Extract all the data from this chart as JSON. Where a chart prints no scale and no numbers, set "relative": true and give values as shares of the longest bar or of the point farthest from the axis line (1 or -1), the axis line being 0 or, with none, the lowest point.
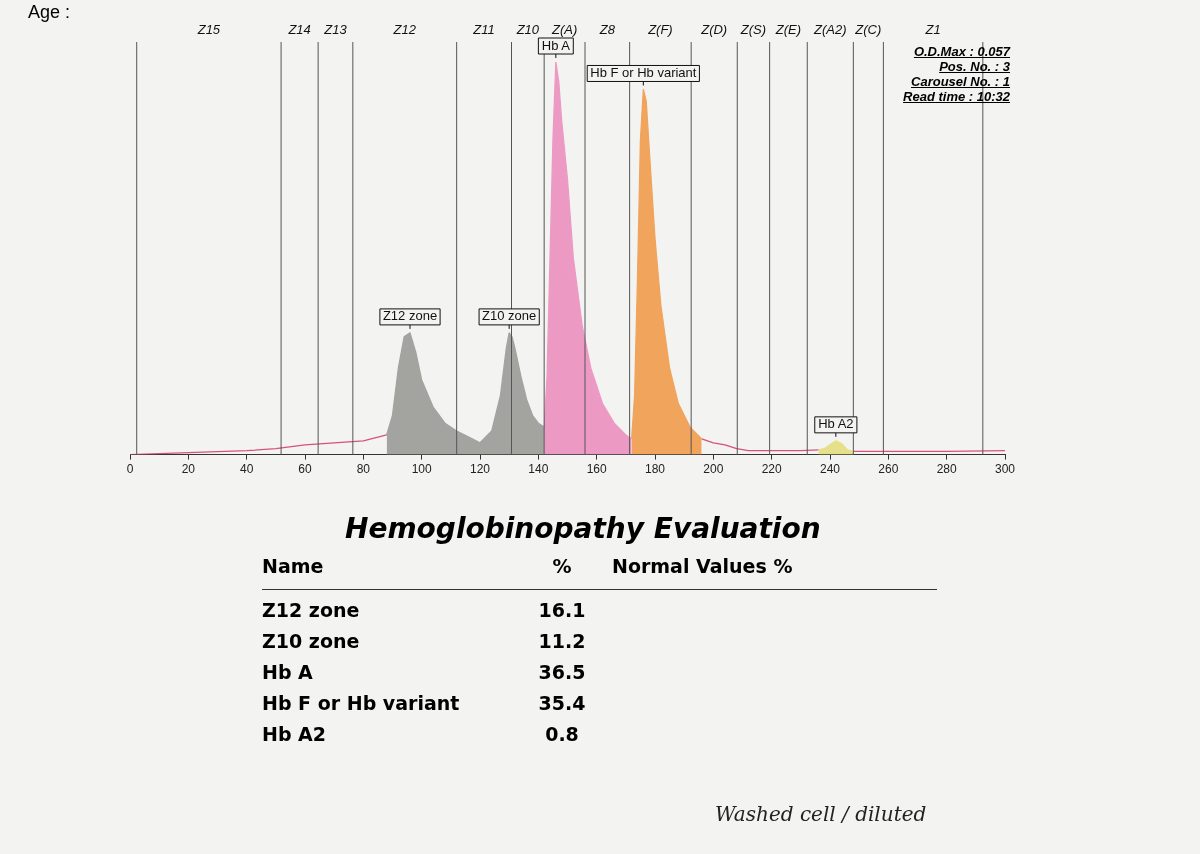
{
  "chart_data": [
    {
      "type": "area",
      "relative": true,
      "xlim": [
        0,
        300
      ],
      "xticks": [
        0,
        20,
        40,
        60,
        80,
        100,
        120,
        140,
        160,
        180,
        200,
        220,
        240,
        260,
        280,
        300
      ],
      "grid": false,
      "legend": false,
      "marker": "none",
      "series": [
        {
          "type": "line",
          "color": "#d9507f",
          "x": [
            0,
            20,
            40,
            50,
            60,
            70,
            80,
            88
          ],
          "values": [
            0,
            0.005,
            0.01,
            0.015,
            0.025,
            0.03,
            0.035,
            0.05
          ]
        },
        {
          "type": "area",
          "color": "#a3a3a0",
          "x": [
            88,
            90,
            92,
            94,
            96,
            98,
            100,
            104,
            108,
            112,
            116,
            120,
            124,
            127,
            129,
            130,
            131,
            132,
            134,
            136,
            138,
            140,
            142
          ],
          "values": [
            0.05,
            0.1,
            0.22,
            0.3,
            0.31,
            0.26,
            0.19,
            0.12,
            0.08,
            0.06,
            0.045,
            0.03,
            0.06,
            0.15,
            0.27,
            0.31,
            0.3,
            0.27,
            0.2,
            0.14,
            0.1,
            0.08,
            0.07
          ]
        },
        {
          "type": "area",
          "color": "#ec9ac4",
          "x": [
            142,
            143,
            144,
            145,
            146,
            147,
            148,
            150,
            152,
            155,
            158,
            162,
            166,
            170,
            172
          ],
          "values": [
            0.07,
            0.2,
            0.5,
            0.8,
            1,
            0.95,
            0.85,
            0.7,
            0.5,
            0.33,
            0.22,
            0.13,
            0.08,
            0.05,
            0.04
          ]
        },
        {
          "type": "area",
          "color": "#f0a45c",
          "x": [
            172,
            173,
            174,
            175,
            176,
            177,
            178,
            180,
            182,
            185,
            188,
            192,
            196
          ],
          "values": [
            0.04,
            0.15,
            0.45,
            0.8,
            0.93,
            0.9,
            0.78,
            0.55,
            0.38,
            0.22,
            0.13,
            0.07,
            0.04
          ]
        },
        {
          "type": "line",
          "color": "#d9507f",
          "x": [
            196,
            200,
            204,
            208,
            212,
            220,
            230,
            236
          ],
          "values": [
            0.04,
            0.03,
            0.025,
            0.015,
            0.01,
            0.01,
            0.01,
            0.012
          ]
        },
        {
          "type": "area",
          "color": "#e6e08a",
          "x": [
            236,
            238,
            240,
            242,
            244,
            246,
            248
          ],
          "values": [
            0.012,
            0.015,
            0.025,
            0.035,
            0.028,
            0.012,
            0.008
          ]
        },
        {
          "type": "line",
          "color": "#d9507f",
          "x": [
            248,
            260,
            280,
            300
          ],
          "values": [
            0.008,
            0.008,
            0.008,
            0.01
          ]
        }
      ],
      "ref_lines": [
        {
          "axis": "x",
          "value": 2.3
        },
        {
          "axis": "x",
          "value": 51.8
        },
        {
          "axis": "x",
          "value": 64.5
        },
        {
          "axis": "x",
          "value": 76.4
        },
        {
          "axis": "x",
          "value": 112
        },
        {
          "axis": "x",
          "value": 130.8
        },
        {
          "axis": "x",
          "value": 142
        },
        {
          "axis": "x",
          "value": 156
        },
        {
          "axis": "x",
          "value": 171.3
        },
        {
          "axis": "x",
          "value": 192.4
        },
        {
          "axis": "x",
          "value": 208.2
        },
        {
          "axis": "x",
          "value": 219.3
        },
        {
          "axis": "x",
          "value": 232.2
        },
        {
          "axis": "x",
          "value": 248
        },
        {
          "axis": "x",
          "value": 258.3
        },
        {
          "axis": "x",
          "value": 292.4
        }
      ],
      "annotations": [
        "Age :",
        "O.D.Max : 0.057",
        "Pos. No. : 3",
        "Carousel No. : 1",
        "Read time : 10:32",
        "Z15",
        "Z14",
        "Z13",
        "Z12",
        "Z11",
        "Z10",
        "Z(A)",
        "Z8",
        "Z(F)",
        "Z(D)",
        "Z(S)",
        "Z(E)",
        "Z(A2)",
        "Z(C)",
        "Z1",
        {
          "text": "Z12 zone",
          "x": 96,
          "y": 0.31
        },
        {
          "text": "Z10 zone",
          "x": 130,
          "y": 0.31
        },
        {
          "text": "Hb A",
          "x": 146,
          "y": 1
        },
        {
          "text": "Hb F or Hb variant",
          "x": 176,
          "y": 0.93
        },
        {
          "text": "Hb A2",
          "x": 242,
          "y": 0.035
        }
      ]
    },
    {
      "type": "other",
      "title": "Hemoglobinopathy Evaluation",
      "annotations": [
        "Name",
        "%",
        "Normal Values %",
        "Z12 zone",
        "16.1",
        "Z10 zone",
        "11.2",
        "Hb A",
        "36.5",
        "Hb F or Hb variant",
        "35.4",
        "Hb A2",
        "0.8",
        "Washed cell / diluted"
      ]
    }
  ]
}
